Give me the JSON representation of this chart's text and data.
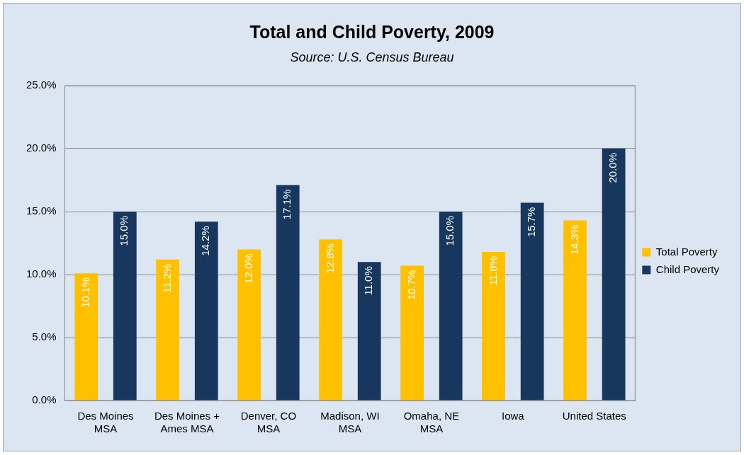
{
  "chart_data": {
    "type": "bar",
    "title": "Total and Child Poverty, 2009",
    "subtitle": "Source: U.S. Census Bureau",
    "categories": [
      "Des Moines\nMSA",
      "Des Moines +\nAmes MSA",
      "Denver, CO\nMSA",
      "Madison, WI\nMSA",
      "Omaha, NE\nMSA",
      "Iowa",
      "United States"
    ],
    "series": [
      {
        "name": "Total Poverty",
        "color": "#ffc000",
        "values": [
          10.1,
          11.2,
          12.0,
          12.8,
          10.7,
          11.8,
          14.3
        ],
        "value_labels": [
          "10.1%",
          "11.2%",
          "12.0%",
          "12.8%",
          "10.7%",
          "11.8%",
          "14.3%"
        ]
      },
      {
        "name": "Child Poverty",
        "color": "#17375e",
        "values": [
          15.0,
          14.2,
          17.1,
          11.0,
          15.0,
          15.7,
          20.0
        ],
        "value_labels": [
          "15.0%",
          "14.2%",
          "17.1%",
          "11.0%",
          "15.0%",
          "15.7%",
          "20.0%"
        ]
      }
    ],
    "ylim": [
      0,
      25
    ],
    "yticks": [
      {
        "value": 0,
        "label": "0.0%"
      },
      {
        "value": 5,
        "label": "5.0%"
      },
      {
        "value": 10,
        "label": "10.0%"
      },
      {
        "value": 15,
        "label": "15.0%"
      },
      {
        "value": 20,
        "label": "20.0%"
      },
      {
        "value": 25,
        "label": "25.0%"
      }
    ],
    "grid": "y",
    "legend": "right"
  }
}
